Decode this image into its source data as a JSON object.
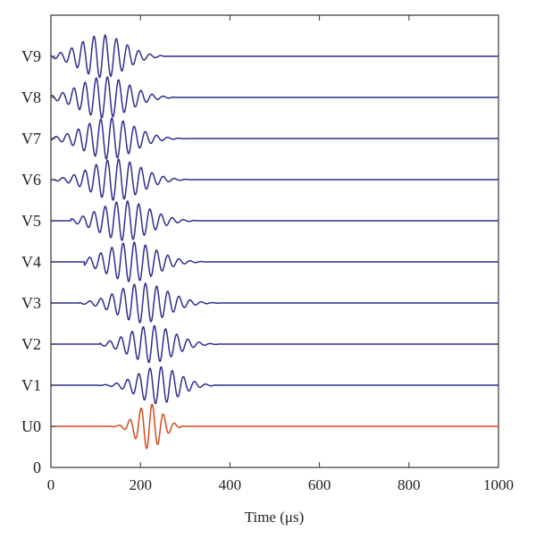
{
  "chart_data": {
    "type": "line",
    "title": "",
    "xlabel": "Time (μs)",
    "ylabel": "",
    "xlim": [
      0,
      1000
    ],
    "xticks": [
      0,
      200,
      400,
      600,
      800,
      1000
    ],
    "ytick_labels": [
      "0",
      "U0",
      "V1",
      "V2",
      "V3",
      "V4",
      "V5",
      "V6",
      "V7",
      "V8",
      "V9"
    ],
    "grid": false,
    "legend": "none",
    "traces": [
      {
        "label": "U0",
        "offset": 1,
        "color": "#d34a1c",
        "center_us": 220,
        "cycles_per_us": 0.04,
        "envelope_sigma_us": 28,
        "amplitude": 0.55,
        "start_us": 130,
        "end_us": 290
      },
      {
        "label": "V1",
        "offset": 2,
        "color": "#2e2e8f",
        "center_us": 240,
        "cycles_per_us": 0.04,
        "envelope_sigma_us": 45,
        "amplitude": 0.45,
        "start_us": 105,
        "end_us": 370
      },
      {
        "label": "V2",
        "offset": 3,
        "color": "#2e2e8f",
        "center_us": 225,
        "cycles_per_us": 0.04,
        "envelope_sigma_us": 50,
        "amplitude": 0.45,
        "start_us": 110,
        "end_us": 380
      },
      {
        "label": "V3",
        "offset": 4,
        "color": "#2e2e8f",
        "center_us": 205,
        "cycles_per_us": 0.04,
        "envelope_sigma_us": 55,
        "amplitude": 0.48,
        "start_us": 65,
        "end_us": 385
      },
      {
        "label": "V4",
        "offset": 5,
        "color": "#2e2e8f",
        "center_us": 180,
        "cycles_per_us": 0.04,
        "envelope_sigma_us": 55,
        "amplitude": 0.48,
        "start_us": 75,
        "end_us": 340
      },
      {
        "label": "V5",
        "offset": 6,
        "color": "#2e2e8f",
        "center_us": 165,
        "cycles_per_us": 0.04,
        "envelope_sigma_us": 55,
        "amplitude": 0.48,
        "start_us": 45,
        "end_us": 330
      },
      {
        "label": "V6",
        "offset": 7,
        "color": "#2e2e8f",
        "center_us": 145,
        "cycles_per_us": 0.04,
        "envelope_sigma_us": 55,
        "amplitude": 0.5,
        "start_us": 10,
        "end_us": 310
      },
      {
        "label": "V7",
        "offset": 8,
        "color": "#2e2e8f",
        "center_us": 130,
        "cycles_per_us": 0.04,
        "envelope_sigma_us": 55,
        "amplitude": 0.5,
        "start_us": 0,
        "end_us": 300
      },
      {
        "label": "V8",
        "offset": 9,
        "color": "#2e2e8f",
        "center_us": 120,
        "cycles_per_us": 0.04,
        "envelope_sigma_us": 55,
        "amplitude": 0.5,
        "start_us": 0,
        "end_us": 275
      },
      {
        "label": "V9",
        "offset": 10,
        "color": "#2e2e8f",
        "center_us": 115,
        "cycles_per_us": 0.04,
        "envelope_sigma_us": 50,
        "amplitude": 0.52,
        "start_us": 0,
        "end_us": 255
      }
    ]
  }
}
